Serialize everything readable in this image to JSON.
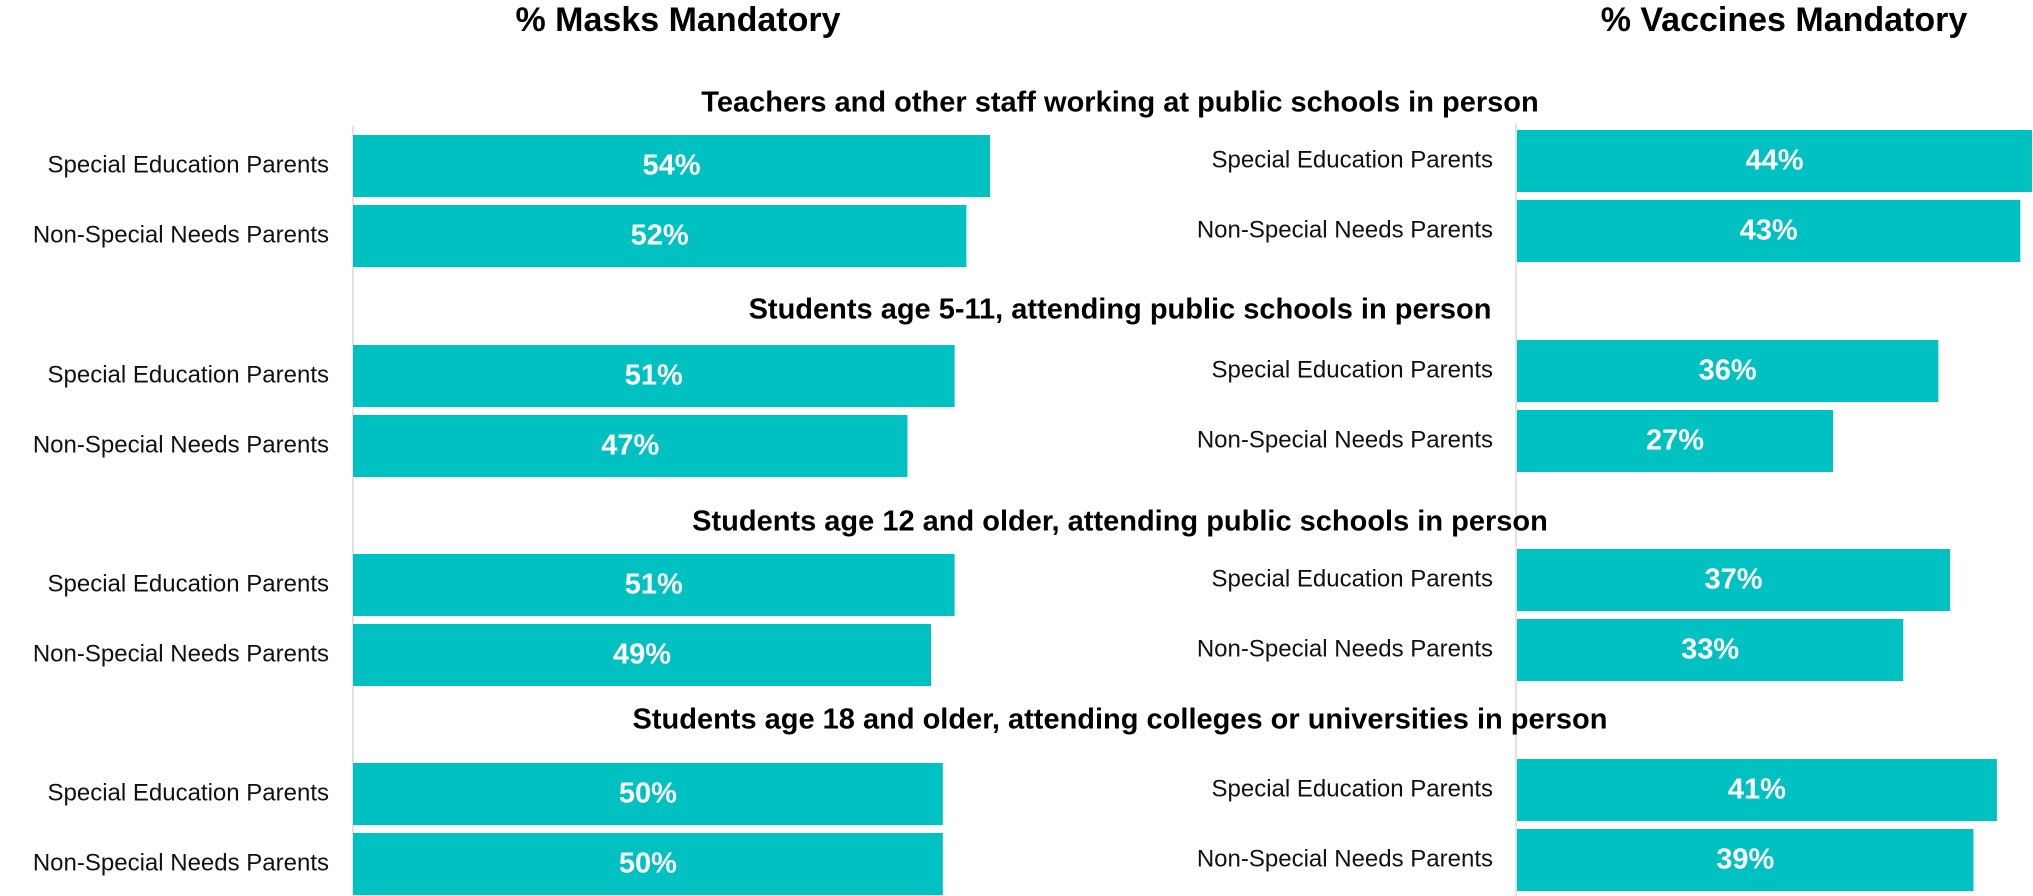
{
  "chart_data": [
    {
      "type": "bar",
      "orientation": "horizontal",
      "title": "% Masks Mandatory",
      "categories": [
        "Teachers and other staff working at public schools in person",
        "Students age 5-11, attending public schools in person",
        "Students age 12 and older, attending public schools in person",
        "Students age 18 and older, attending colleges or universities in person"
      ],
      "series": [
        {
          "name": "Special Education Parents",
          "color": "#00c1c1",
          "values": [
            54,
            51,
            51,
            50
          ],
          "value_labels": [
            "54%",
            "51%",
            "51%",
            "50%"
          ]
        },
        {
          "name": "Non-Special Needs Parents",
          "color": "#00c1c1",
          "values": [
            52,
            47,
            49,
            50
          ],
          "value_labels": [
            "52%",
            "47%",
            "49%",
            "50%"
          ]
        }
      ],
      "xlim": [
        0,
        54
      ]
    },
    {
      "type": "bar",
      "orientation": "horizontal",
      "title": "% Vaccines Mandatory",
      "series": [
        {
          "name": "Special Education Parents",
          "color": "#00c1c1",
          "values": [
            44,
            36,
            37,
            41
          ],
          "value_labels": [
            "44%",
            "36%",
            "37%",
            "41%"
          ]
        },
        {
          "name": "Non-Special Needs Parents",
          "color": "#00c1c1",
          "values": [
            43,
            27,
            33,
            39
          ],
          "value_labels": [
            "43%",
            "27%",
            "33%",
            "39%"
          ]
        }
      ],
      "xlim": [
        0,
        44
      ]
    }
  ]
}
